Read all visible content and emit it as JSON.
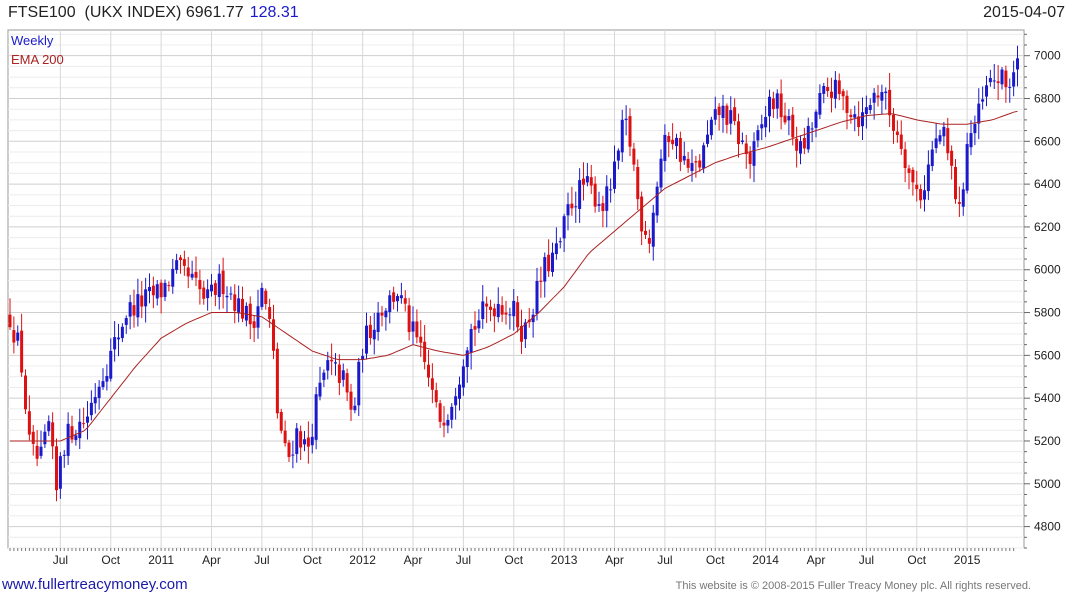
{
  "header": {
    "symbol": "FTSE100",
    "name": "(UKX INDEX)",
    "last": "6961.77",
    "change": "128.31",
    "date": "2015-04-07"
  },
  "footer": {
    "website": "www.fullertreacymoney.com",
    "copyright": "This website is © 2008-2015 Fuller Treacy Money plc. All rights reserved."
  },
  "colors": {
    "up": "#1a1acc",
    "down": "#dd1111",
    "ema": "#aa2222",
    "grid": "#d8d8d8"
  },
  "chart_data": {
    "type": "candlestick",
    "legend": [
      "Weekly",
      "EMA 200"
    ],
    "legend_position": "top-left",
    "ylim": [
      4700,
      7120
    ],
    "y_ticks": [
      4800,
      5000,
      5200,
      5400,
      5600,
      5800,
      6000,
      6200,
      6400,
      6600,
      6800,
      7000
    ],
    "x_ticks": [
      {
        "label": "Jul",
        "x": 1
      },
      {
        "label": "Oct",
        "x": 2
      },
      {
        "label": "2011",
        "x": 3
      },
      {
        "label": "Apr",
        "x": 4
      },
      {
        "label": "Jul",
        "x": 5
      },
      {
        "label": "Oct",
        "x": 6
      },
      {
        "label": "2012",
        "x": 7
      },
      {
        "label": "Apr",
        "x": 8
      },
      {
        "label": "Jul",
        "x": 9
      },
      {
        "label": "Oct",
        "x": 10
      },
      {
        "label": "2013",
        "x": 11
      },
      {
        "label": "Apr",
        "x": 12
      },
      {
        "label": "Jul",
        "x": 13
      },
      {
        "label": "Oct",
        "x": 14
      },
      {
        "label": "2014",
        "x": 15
      },
      {
        "label": "Apr",
        "x": 16
      },
      {
        "label": "Jul",
        "x": 17
      },
      {
        "label": "Oct",
        "x": 18
      },
      {
        "label": "2015",
        "x": 19
      }
    ],
    "x_range": [
      0,
      19.97
    ],
    "grid": true,
    "weekly_close_keypoints": [
      [
        0.0,
        5780
      ],
      [
        0.2,
        5620
      ],
      [
        0.4,
        5150
      ],
      [
        0.6,
        5100
      ],
      [
        0.8,
        5300
      ],
      [
        0.9,
        4900
      ],
      [
        1.0,
        5150
      ],
      [
        1.2,
        5250
      ],
      [
        1.5,
        5300
      ],
      [
        1.8,
        5500
      ],
      [
        2.0,
        5600
      ],
      [
        2.3,
        5800
      ],
      [
        2.6,
        5850
      ],
      [
        3.0,
        5900
      ],
      [
        3.3,
        6000
      ],
      [
        3.6,
        5950
      ],
      [
        3.9,
        5850
      ],
      [
        4.2,
        5950
      ],
      [
        4.5,
        5850
      ],
      [
        4.8,
        5750
      ],
      [
        5.0,
        5900
      ],
      [
        5.2,
        5700
      ],
      [
        5.3,
        5350
      ],
      [
        5.5,
        5100
      ],
      [
        5.7,
        5250
      ],
      [
        5.9,
        5150
      ],
      [
        6.1,
        5400
      ],
      [
        6.3,
        5550
      ],
      [
        6.6,
        5500
      ],
      [
        6.8,
        5300
      ],
      [
        7.0,
        5650
      ],
      [
        7.3,
        5800
      ],
      [
        7.7,
        5900
      ],
      [
        7.9,
        5750
      ],
      [
        8.1,
        5650
      ],
      [
        8.3,
        5500
      ],
      [
        8.5,
        5300
      ],
      [
        8.7,
        5350
      ],
      [
        8.9,
        5500
      ],
      [
        9.1,
        5700
      ],
      [
        9.4,
        5800
      ],
      [
        9.7,
        5850
      ],
      [
        10.0,
        5800
      ],
      [
        10.2,
        5700
      ],
      [
        10.4,
        5850
      ],
      [
        10.6,
        6000
      ],
      [
        10.9,
        6100
      ],
      [
        11.1,
        6300
      ],
      [
        11.4,
        6400
      ],
      [
        11.6,
        6350
      ],
      [
        11.8,
        6300
      ],
      [
        12.0,
        6450
      ],
      [
        12.2,
        6700
      ],
      [
        12.35,
        6550
      ],
      [
        12.5,
        6250
      ],
      [
        12.7,
        6150
      ],
      [
        12.9,
        6500
      ],
      [
        13.1,
        6650
      ],
      [
        13.3,
        6550
      ],
      [
        13.5,
        6450
      ],
      [
        13.7,
        6500
      ],
      [
        13.9,
        6650
      ],
      [
        14.1,
        6750
      ],
      [
        14.3,
        6700
      ],
      [
        14.5,
        6600
      ],
      [
        14.7,
        6500
      ],
      [
        14.9,
        6650
      ],
      [
        15.1,
        6800
      ],
      [
        15.3,
        6750
      ],
      [
        15.5,
        6650
      ],
      [
        15.7,
        6550
      ],
      [
        15.9,
        6650
      ],
      [
        16.1,
        6800
      ],
      [
        16.3,
        6850
      ],
      [
        16.5,
        6800
      ],
      [
        16.7,
        6750
      ],
      [
        16.9,
        6700
      ],
      [
        17.1,
        6800
      ],
      [
        17.3,
        6850
      ],
      [
        17.5,
        6700
      ],
      [
        17.7,
        6600
      ],
      [
        17.9,
        6400
      ],
      [
        18.1,
        6350
      ],
      [
        18.3,
        6550
      ],
      [
        18.5,
        6650
      ],
      [
        18.7,
        6450
      ],
      [
        18.85,
        6250
      ],
      [
        19.0,
        6600
      ],
      [
        19.2,
        6700
      ],
      [
        19.4,
        6850
      ],
      [
        19.6,
        6900
      ],
      [
        19.8,
        6850
      ],
      [
        19.97,
        6962
      ]
    ],
    "ema200_keypoints": [
      [
        0.0,
        5200
      ],
      [
        1.0,
        5200
      ],
      [
        1.5,
        5250
      ],
      [
        2.0,
        5400
      ],
      [
        2.5,
        5550
      ],
      [
        3.0,
        5680
      ],
      [
        3.5,
        5750
      ],
      [
        4.0,
        5800
      ],
      [
        4.5,
        5800
      ],
      [
        5.0,
        5780
      ],
      [
        5.5,
        5700
      ],
      [
        6.0,
        5620
      ],
      [
        6.5,
        5580
      ],
      [
        7.0,
        5580
      ],
      [
        7.5,
        5600
      ],
      [
        8.0,
        5650
      ],
      [
        8.5,
        5620
      ],
      [
        9.0,
        5600
      ],
      [
        9.5,
        5640
      ],
      [
        10.0,
        5700
      ],
      [
        10.5,
        5800
      ],
      [
        11.0,
        5920
      ],
      [
        11.5,
        6080
      ],
      [
        12.0,
        6180
      ],
      [
        12.5,
        6280
      ],
      [
        13.0,
        6380
      ],
      [
        13.5,
        6440
      ],
      [
        14.0,
        6500
      ],
      [
        14.5,
        6540
      ],
      [
        15.0,
        6570
      ],
      [
        15.5,
        6610
      ],
      [
        16.0,
        6650
      ],
      [
        16.5,
        6690
      ],
      [
        17.0,
        6720
      ],
      [
        17.5,
        6730
      ],
      [
        18.0,
        6700
      ],
      [
        18.5,
        6680
      ],
      [
        19.0,
        6680
      ],
      [
        19.5,
        6700
      ],
      [
        19.97,
        6740
      ]
    ]
  }
}
